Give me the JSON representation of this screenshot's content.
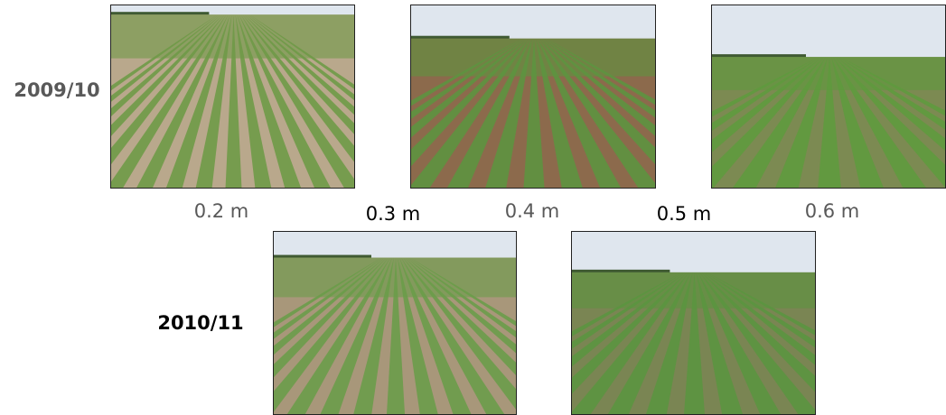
{
  "row_labels": [
    "2009/10",
    "2010/11"
  ],
  "spacing_labels": [
    "0.2 m",
    "0.3 m",
    "0.4 m",
    "0.5 m",
    "0.6 m"
  ]
}
